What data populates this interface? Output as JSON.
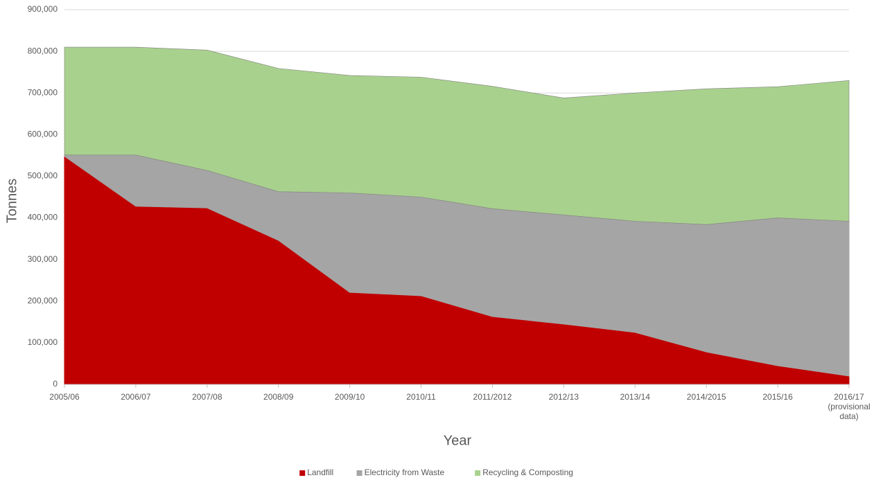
{
  "chart_data": {
    "type": "stacked-area",
    "x_label": "Year",
    "y_label": "Tonnes",
    "categories": [
      "2005/06",
      "2006/07",
      "2007/08",
      "2008/09",
      "2009/10",
      "2010/11",
      "2011/2012",
      "2012/13",
      "2013/14",
      "2014/2015",
      "2015/16",
      "2016/17 (provisional data)"
    ],
    "series": [
      {
        "name": "Landfill",
        "color": "#c00000",
        "values": [
          548000,
          428000,
          424000,
          346000,
          221000,
          213000,
          163000,
          145000,
          125000,
          78000,
          45000,
          20000
        ]
      },
      {
        "name": "Electricity from Waste",
        "color": "#a5a5a5",
        "values": [
          3000,
          123000,
          90000,
          117000,
          239000,
          237000,
          259000,
          262000,
          267000,
          306000,
          355000,
          372000
        ]
      },
      {
        "name": "Recycling & Composting",
        "color": "#a9d18e",
        "values": [
          259000,
          259000,
          289000,
          296000,
          282000,
          288000,
          294000,
          281000,
          308000,
          326000,
          315000,
          338000
        ]
      }
    ],
    "ylim": [
      0,
      900000
    ],
    "yticks": [
      0,
      {
        "value": 100000,
        "label": "100,000"
      },
      {
        "value": 200000,
        "label": "200,000"
      },
      {
        "value": 300000,
        "label": "300,000"
      },
      {
        "value": 400000,
        "label": "400,000"
      },
      {
        "value": 500000,
        "label": "500,000"
      },
      {
        "value": 600000,
        "label": "600,000"
      },
      {
        "value": 700000,
        "label": "700,000"
      },
      {
        "value": 800000,
        "label": "800,000"
      },
      {
        "value": 900000,
        "label": "900,000"
      }
    ],
    "grid": true,
    "legend": "bottom"
  }
}
